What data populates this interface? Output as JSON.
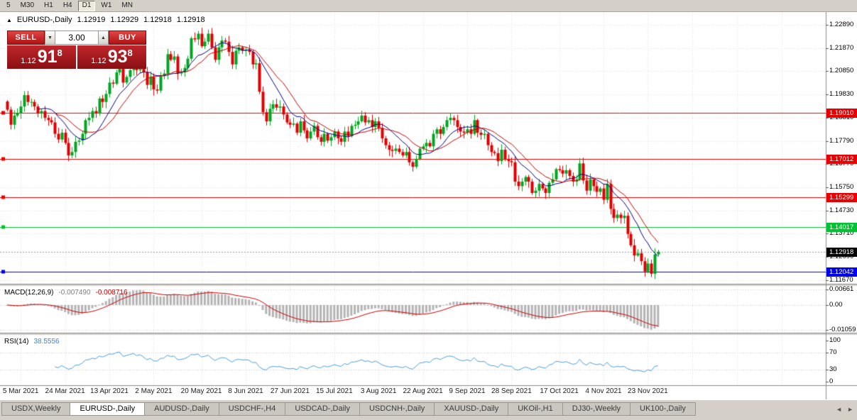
{
  "toolbar": {
    "items": [
      {
        "label": "5",
        "active": false
      },
      {
        "label": "M30",
        "active": false
      },
      {
        "label": "H1",
        "active": false
      },
      {
        "label": "H4",
        "active": false
      },
      {
        "label": "D1",
        "active": true
      },
      {
        "label": "W1",
        "active": false
      },
      {
        "label": "MN",
        "active": false
      }
    ]
  },
  "chart": {
    "header": {
      "collapse_icon": "▲",
      "symbol_period": "EURUSD-,Daily",
      "open": "1.12919",
      "high": "1.12929",
      "low": "1.12918",
      "close": "1.12918"
    },
    "one_click": {
      "sell_label": "SELL",
      "buy_label": "BUY",
      "lot": "3.00",
      "spin_down_icon": "▼",
      "spin_up_icon": "▲",
      "bid": {
        "big_figure": "1.12",
        "pips": "91",
        "pipette": "8"
      },
      "ask": {
        "big_figure": "1.12",
        "pips": "93",
        "pipette": "8"
      }
    }
  },
  "chart_data": {
    "type": "candlestick",
    "symbol": "EURUSD-,Daily",
    "closes": [
      1.1916,
      1.185,
      1.189,
      1.19,
      1.193,
      1.198,
      1.195,
      1.195,
      1.193,
      1.19,
      1.191,
      1.188,
      1.187,
      1.186,
      1.181,
      1.1785,
      1.1815,
      1.177,
      1.1715,
      1.173,
      1.1775,
      1.178,
      1.181,
      1.187,
      1.188,
      1.191,
      1.19,
      1.1965,
      1.195,
      1.1985,
      1.2035,
      1.203,
      1.208,
      1.2105,
      1.2035,
      1.206,
      1.209,
      1.2125,
      1.209,
      1.212,
      1.208,
      1.2025,
      1.206,
      1.2005,
      1.2,
      1.2065,
      1.2075,
      1.216,
      1.2135,
      1.215,
      1.2075,
      1.208,
      1.21,
      1.214,
      1.223,
      1.2225,
      1.225,
      1.2195,
      1.2215,
      1.225,
      1.219,
      1.2135,
      1.219,
      1.222,
      1.2215,
      1.217,
      1.2115,
      1.2175,
      1.219,
      1.2175,
      1.218,
      1.217,
      1.2115,
      1.212,
      1.1995,
      1.1905,
      1.1865,
      1.192,
      1.194,
      1.1925,
      1.193,
      1.1895,
      1.186,
      1.185,
      1.1855,
      1.1815,
      1.1865,
      1.1825,
      1.179,
      1.182,
      1.1845,
      1.1795,
      1.1775,
      1.181,
      1.178,
      1.1795,
      1.182,
      1.179,
      1.1775,
      1.182,
      1.18,
      1.1845,
      1.185,
      1.1865,
      1.189,
      1.186,
      1.187,
      1.184,
      1.1865,
      1.1835,
      1.179,
      1.176,
      1.174,
      1.1735,
      1.1745,
      1.173,
      1.1715,
      1.173,
      1.1685,
      1.1665,
      1.17,
      1.1745,
      1.1755,
      1.177,
      1.1755,
      1.181,
      1.183,
      1.181,
      1.184,
      1.187,
      1.188,
      1.187,
      1.184,
      1.182,
      1.1815,
      1.183,
      1.181,
      1.187,
      1.1815,
      1.1805,
      1.181,
      1.176,
      1.173,
      1.1725,
      1.169,
      1.174,
      1.17,
      1.169,
      1.1685,
      1.16,
      1.158,
      1.16,
      1.162,
      1.16,
      1.155,
      1.156,
      1.159,
      1.157,
      1.155,
      1.1595,
      1.161,
      1.1655,
      1.165,
      1.1635,
      1.165,
      1.1625,
      1.16,
      1.161,
      1.168,
      1.1605,
      1.156,
      1.161,
      1.158,
      1.1555,
      1.157,
      1.152,
      1.159,
      1.148,
      1.144,
      1.1455,
      1.144,
      1.145,
      1.137,
      1.132,
      1.1275,
      1.1285,
      1.125,
      1.1205,
      1.124,
      1.1195,
      1.128,
      1.12918
    ],
    "x_tick_labels": [
      "5 Mar 2021",
      "24 Mar 2021",
      "13 Apr 2021",
      "2 May 2021",
      "20 May 2021",
      "8 Jun 2021",
      "27 Jun 2021",
      "15 Jul 2021",
      "3 Aug 2021",
      "22 Aug 2021",
      "9 Sep 2021",
      "28 Sep 2021",
      "17 Oct 2021",
      "4 Nov 2021",
      "23 Nov 2021"
    ],
    "tick_indices": [
      4,
      17,
      30,
      43,
      57,
      70,
      83,
      96,
      109,
      122,
      135,
      148,
      162,
      175,
      188
    ],
    "y_tick_labels": [
      "1.22890",
      "1.21870",
      "1.20850",
      "1.19830",
      "1.18810",
      "1.17790",
      "1.16770",
      "1.15750",
      "1.14730",
      "1.13710",
      "1.12690",
      "1.11670"
    ],
    "price_range": {
      "top": 1.2345,
      "bottom": 1.1151
    },
    "hlines": [
      {
        "price": 1.1901,
        "color": "#e80000"
      },
      {
        "price": 1.17012,
        "color": "#e80000"
      },
      {
        "price": 1.15299,
        "color": "#e80000"
      },
      {
        "price": 1.14017,
        "color": "#00c232"
      },
      {
        "price": 1.12042,
        "color": "#0000e8"
      }
    ],
    "price_tags": [
      {
        "value": "1.19010",
        "price": 1.1901,
        "color": "#e80000"
      },
      {
        "value": "1.17012",
        "price": 1.17012,
        "color": "#e80000"
      },
      {
        "value": "1.15299",
        "price": 1.15299,
        "color": "#e80000"
      },
      {
        "value": "1.14017",
        "price": 1.14017,
        "color": "#00c232"
      },
      {
        "value": "1.12918",
        "price": 1.12918,
        "color": "#000000"
      },
      {
        "value": "1.12042",
        "price": 1.12042,
        "color": "#0000e8"
      }
    ],
    "bid_price": 1.12918,
    "ma": {
      "fast": 10,
      "slow": 15
    },
    "indicators": {
      "macd": {
        "label": "MACD(12,26,9)",
        "value_main": "-0.007490",
        "value_signal": "-0.008716",
        "params": {
          "fast": 12,
          "slow": 26,
          "signal": 9
        },
        "axis_labels": [
          {
            "text": "0.00661",
            "value": 0.00661
          },
          {
            "text": "0.00",
            "value": 0
          },
          {
            "text": "-0.01059",
            "value": -0.01059
          }
        ]
      },
      "rsi": {
        "label": "RSI(14)",
        "value": "38.5556",
        "period": 14,
        "levels": [
          70,
          30
        ],
        "axis_labels": [
          {
            "text": "100",
            "value": 100
          },
          {
            "text": "70",
            "value": 70
          },
          {
            "text": "30",
            "value": 30
          },
          {
            "text": "0",
            "value": 0
          }
        ]
      }
    },
    "colors": {
      "bull": "#00a520",
      "bear": "#e00000",
      "ma_fast": "#000080",
      "ma_slow": "#c80000",
      "macd_hist": "#b4b4b4",
      "macd_signal": "#cc0000",
      "rsi": "#4aa0dc",
      "grid": "#e4e4e4"
    }
  },
  "tabs": {
    "items": [
      {
        "label": "USDX,Weekly",
        "active": false
      },
      {
        "label": "EURUSD-,Daily",
        "active": true
      },
      {
        "label": "AUDUSD-,Daily",
        "active": false
      },
      {
        "label": "USDCHF-,H4",
        "active": false
      },
      {
        "label": "USDCAD-,Daily",
        "active": false
      },
      {
        "label": "USDCNH-,Daily",
        "active": false
      },
      {
        "label": "XAUUSD-,Daily",
        "active": false
      },
      {
        "label": "UKOil-,H1",
        "active": false
      },
      {
        "label": "DJ30-,Weekly",
        "active": false
      },
      {
        "label": "UK100-,Daily",
        "active": false
      }
    ],
    "scroll_left": "◄",
    "scroll_right": "►"
  }
}
